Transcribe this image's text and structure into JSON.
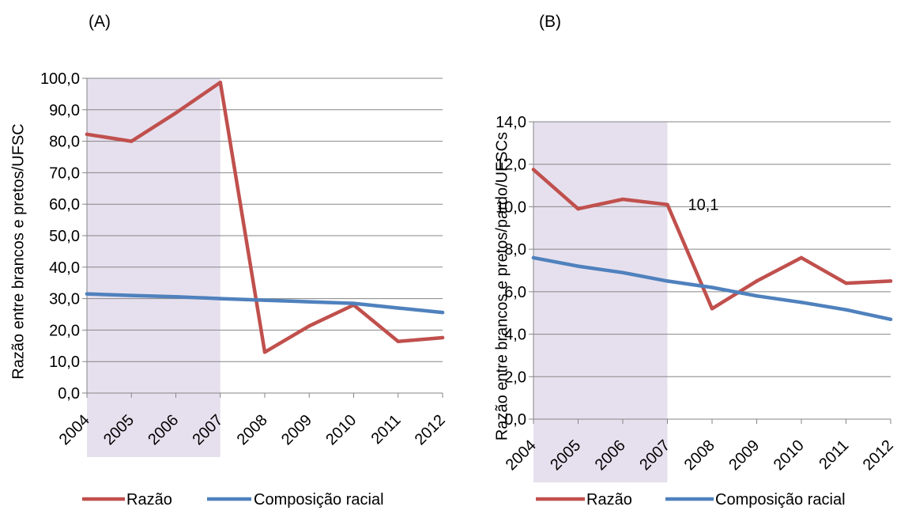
{
  "chart_data": [
    {
      "panel_label": "(A)",
      "type": "line",
      "title": "",
      "xlabel": "",
      "ylabel": "Razão entre brancos e pretos/UFSC",
      "categories": [
        "2004",
        "2005",
        "2006",
        "2007",
        "2008",
        "2009",
        "2010",
        "2011",
        "2012"
      ],
      "ylim": [
        0,
        100
      ],
      "ystep": 10,
      "ytick_labels": [
        "0,0",
        "10,0",
        "20,0",
        "30,0",
        "40,0",
        "50,0",
        "60,0",
        "70,0",
        "80,0",
        "90,0",
        "100,0"
      ],
      "grid": true,
      "shaded_range": [
        "2004",
        "2007"
      ],
      "shade_color": "#e6e0ee",
      "legend_position": "bottom",
      "series": [
        {
          "name": "Razão",
          "color": "#c0504d",
          "values": [
            82.2,
            80.0,
            89.0,
            98.7,
            13.0,
            21.3,
            28.0,
            16.4,
            17.6
          ]
        },
        {
          "name": "Composição racial",
          "color": "#4f81bd",
          "values": [
            31.5,
            31.0,
            30.6,
            30.0,
            29.5,
            29.0,
            28.5,
            27.0,
            25.6
          ]
        }
      ],
      "annotations": []
    },
    {
      "panel_label": "(B)",
      "type": "line",
      "title": "",
      "xlabel": "",
      "ylabel": "Razão entre brancos e pretos/pardo/UFSCs",
      "categories": [
        "2004",
        "2005",
        "2006",
        "2007",
        "2008",
        "2009",
        "2010",
        "2011",
        "2012"
      ],
      "ylim": [
        0,
        14
      ],
      "ystep": 2,
      "ytick_labels": [
        "0,0",
        "2,0",
        "4,0",
        "6,0",
        "8,0",
        "10,0",
        "12,0",
        "14,0"
      ],
      "grid": true,
      "shaded_range": [
        "2004",
        "2007"
      ],
      "shade_color": "#e6e0ee",
      "legend_position": "bottom",
      "series": [
        {
          "name": "Razão",
          "color": "#c0504d",
          "values": [
            11.75,
            9.9,
            10.35,
            10.1,
            5.2,
            6.5,
            7.6,
            6.4,
            6.5
          ]
        },
        {
          "name": "Composição racial",
          "color": "#4f81bd",
          "values": [
            7.6,
            7.2,
            6.9,
            6.5,
            6.2,
            5.8,
            5.5,
            5.15,
            4.7
          ]
        }
      ],
      "annotations": [
        {
          "category": "2007",
          "value": 10.1,
          "text": "10,1"
        }
      ]
    }
  ]
}
